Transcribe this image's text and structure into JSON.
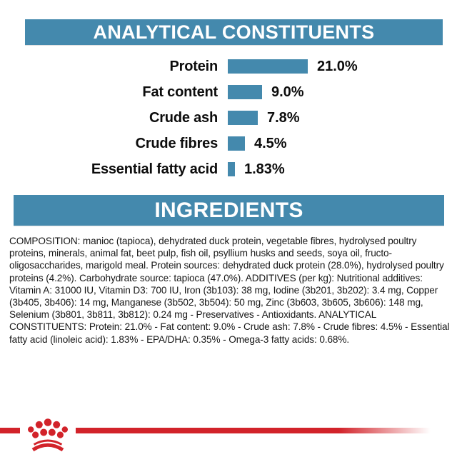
{
  "theme": {
    "accent_teal": "#4489ad",
    "brand_red": "#d2232a",
    "text_color": "#161616",
    "background": "#ffffff"
  },
  "sections": {
    "analytical": {
      "title": "ANALYTICAL CONSTITUENTS"
    },
    "ingredients": {
      "title": "INGREDIENTS"
    }
  },
  "chart_data": {
    "type": "bar",
    "orientation": "horizontal",
    "title": "ANALYTICAL CONSTITUENTS",
    "categories": [
      "Protein",
      "Fat content",
      "Crude ash",
      "Crude fibres",
      "Essential fatty acid"
    ],
    "values": [
      21.0,
      9.0,
      7.8,
      4.5,
      1.83
    ],
    "value_labels": [
      "21.0%",
      "9.0%",
      "7.8%",
      "4.5%",
      "1.83%"
    ],
    "unit": "%",
    "xlim": [
      0,
      21
    ],
    "bar_color": "#4489ad",
    "grid": false,
    "legend": false,
    "value_label_position": "right-of-bar"
  },
  "ingredients": {
    "text": "COMPOSITION: manioc (tapioca), dehydrated duck protein, vegetable fibres, hydrolysed poultry proteins, minerals, animal fat, beet pulp, fish oil, psyllium husks and seeds, soya oil, fructo-oligosaccharides, marigold meal. Protein sources: dehydrated duck protein (28.0%), hydrolysed poultry proteins (4.2%). Carbohydrate source: tapioca (47.0%). ADDITIVES (per kg): Nutritional additives: Vitamin A: 31000 IU, Vitamin D3: 700 IU, Iron (3b103): 38 mg, Iodine (3b201, 3b202): 3.4 mg, Copper (3b405, 3b406): 14 mg, Manganese (3b502, 3b504): 50 mg, Zinc (3b603, 3b605, 3b606): 148 mg, Selenium (3b801, 3b811, 3b812): 0.24 mg - Preservatives - Antioxidants. ANALYTICAL CONSTITUENTS: Protein: 21.0% - Fat content: 9.0% - Crude ash: 7.8% - Crude fibres: 4.5% - Essential fatty acid (linoleic acid): 1.83% - EPA/DHA: 0.35% - Omega-3 fatty acids: 0.68%."
  },
  "brand": {
    "logo": "royal-canin-crown"
  }
}
